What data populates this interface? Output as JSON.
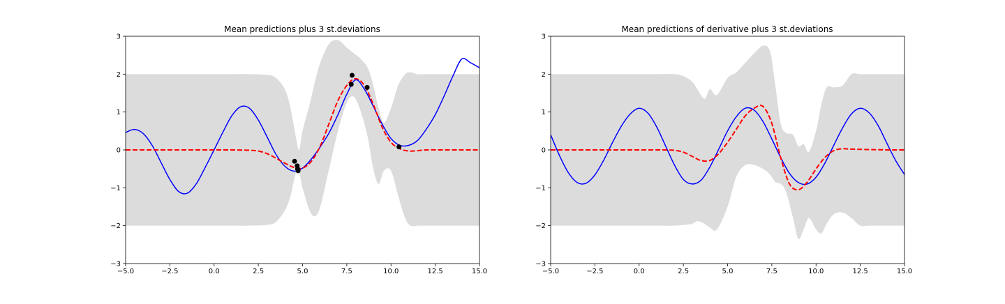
{
  "chart_data": [
    {
      "type": "line",
      "title": "Mean predictions plus 3 st.deviations",
      "xlim": [
        -5,
        15
      ],
      "ylim": [
        -3,
        3
      ],
      "xticks": [
        -5,
        -2.5,
        0,
        2.5,
        5,
        7.5,
        10,
        12.5,
        15
      ],
      "xtick_labels": [
        "−5.0",
        "−2.5",
        "0.0",
        "2.5",
        "5.0",
        "7.5",
        "10.0",
        "12.5",
        "15.0"
      ],
      "yticks": [
        -3,
        -2,
        -1,
        0,
        1,
        2,
        3
      ],
      "ytick_labels": [
        "−3",
        "−2",
        "−1",
        "0",
        "1",
        "2",
        "3"
      ],
      "grid": false,
      "colors": {
        "true": "#0000ff",
        "mean": "#ff0000",
        "band": "#dcdcdc",
        "points": "#000000"
      },
      "series": [
        {
          "style": "solid-blue",
          "x": [
            -5,
            -4.5,
            -4,
            -3.5,
            -3,
            -2.5,
            -2,
            -1.5,
            -1,
            -0.5,
            0,
            0.5,
            1,
            1.5,
            2,
            2.5,
            3,
            3.5,
            4,
            4.5,
            5,
            5.5,
            6,
            6.5,
            7,
            7.5,
            8,
            8.5,
            9,
            9.5,
            10,
            10.5,
            11,
            11.5,
            12,
            12.5,
            13,
            13.5,
            14,
            14.5,
            15
          ],
          "y": [
            0.46,
            0.54,
            0.43,
            0.12,
            -0.33,
            -0.78,
            -1.1,
            -1.14,
            -0.89,
            -0.46,
            0.0,
            0.47,
            0.9,
            1.14,
            1.1,
            0.79,
            0.34,
            -0.12,
            -0.43,
            -0.56,
            -0.48,
            -0.24,
            0.08,
            0.45,
            0.93,
            1.47,
            1.85,
            1.6,
            1.15,
            0.68,
            0.3,
            0.12,
            0.12,
            0.25,
            0.55,
            0.93,
            1.42,
            1.95,
            2.4,
            2.3,
            2.17
          ]
        },
        {
          "style": "dashed-red",
          "x": [
            -5,
            -4,
            -3,
            -2,
            -1,
            0,
            1,
            2,
            2.5,
            3,
            3.5,
            4,
            4.5,
            5,
            5.5,
            6,
            6.5,
            7,
            7.5,
            8,
            8.5,
            9,
            9.5,
            10,
            10.5,
            11,
            11.5,
            12,
            13,
            14,
            15
          ],
          "y": [
            0,
            0,
            0,
            0,
            0,
            0,
            0,
            -0.01,
            -0.03,
            -0.1,
            -0.22,
            -0.35,
            -0.46,
            -0.48,
            -0.3,
            0.1,
            0.7,
            1.3,
            1.7,
            1.88,
            1.7,
            1.2,
            0.6,
            0.2,
            0.03,
            -0.03,
            -0.02,
            0,
            0,
            0,
            0
          ]
        }
      ],
      "band": {
        "x": [
          -5,
          -4,
          -3,
          -2,
          -1,
          0,
          1,
          2,
          3,
          3.5,
          4,
          4.3,
          4.6,
          4.8,
          5,
          5.4,
          5.7,
          6,
          6.5,
          7,
          7.5,
          7.9,
          8.3,
          8.7,
          9,
          9.3,
          9.6,
          10,
          10.4,
          10.8,
          11.1,
          11.5,
          12,
          12.5,
          13,
          14,
          15
        ],
        "upper": [
          2,
          2,
          2,
          2,
          2,
          2,
          2,
          2,
          1.98,
          1.9,
          1.6,
          1.15,
          0.4,
          0.0,
          0.5,
          1.2,
          1.8,
          2.3,
          2.8,
          2.9,
          2.7,
          2.55,
          2.4,
          2.15,
          1.7,
          1.1,
          0.72,
          1.1,
          1.7,
          2.0,
          2.05,
          2.0,
          2.0,
          2.0,
          2.0,
          2.0,
          2.0
        ],
        "lower": [
          -2,
          -2,
          -2,
          -2,
          -2,
          -2,
          -2,
          -2,
          -1.98,
          -1.9,
          -1.6,
          -1.25,
          -0.65,
          -0.6,
          -1.0,
          -1.6,
          -1.75,
          -1.5,
          -0.5,
          0.5,
          1.25,
          1.4,
          1.0,
          0.3,
          -0.5,
          -0.9,
          -0.55,
          -0.55,
          -1.2,
          -1.8,
          -2.0,
          -2.0,
          -2.0,
          -2.0,
          -2.0,
          -2.0,
          -2.0
        ]
      },
      "points": [
        {
          "x": 4.55,
          "y": -0.3
        },
        {
          "x": 4.7,
          "y": -0.42
        },
        {
          "x": 4.72,
          "y": -0.5
        },
        {
          "x": 4.75,
          "y": -0.55
        },
        {
          "x": 7.75,
          "y": 1.73
        },
        {
          "x": 7.8,
          "y": 1.97
        },
        {
          "x": 8.65,
          "y": 1.65
        },
        {
          "x": 10.45,
          "y": 0.08
        }
      ]
    },
    {
      "type": "line",
      "title": "Mean predictions of derivative plus 3 st.deviations",
      "xlim": [
        -5,
        15
      ],
      "ylim": [
        -3,
        3
      ],
      "xticks": [
        -5,
        -2.5,
        0,
        2.5,
        5,
        7.5,
        10,
        12.5,
        15
      ],
      "xtick_labels": [
        "−5.0",
        "−2.5",
        "0.0",
        "2.5",
        "5.0",
        "7.5",
        "10.0",
        "12.5",
        "15.0"
      ],
      "yticks": [
        -3,
        -2,
        -1,
        0,
        1,
        2,
        3
      ],
      "ytick_labels": [
        "−3",
        "−2",
        "−1",
        "0",
        "1",
        "2",
        "3"
      ],
      "grid": false,
      "colors": {
        "true": "#0000ff",
        "mean": "#ff0000",
        "band": "#dcdcdc"
      },
      "series": [
        {
          "style": "solid-blue",
          "x": [
            -5,
            -4.5,
            -4,
            -3.5,
            -3,
            -2.5,
            -2,
            -1.5,
            -1,
            -0.5,
            0,
            0.5,
            1,
            1.5,
            2,
            2.5,
            3,
            3.5,
            4,
            4.5,
            5,
            5.5,
            6,
            6.5,
            7,
            7.5,
            8,
            8.5,
            9,
            9.5,
            10,
            10.5,
            11,
            11.5,
            12,
            12.5,
            13,
            13.5,
            14,
            14.5,
            15
          ],
          "y": [
            0.4,
            -0.15,
            -0.6,
            -0.86,
            -0.88,
            -0.66,
            -0.27,
            0.2,
            0.63,
            0.95,
            1.1,
            0.97,
            0.6,
            0.1,
            -0.4,
            -0.78,
            -0.9,
            -0.8,
            -0.45,
            0.02,
            0.5,
            0.88,
            1.1,
            1.05,
            0.75,
            0.29,
            -0.2,
            -0.62,
            -0.86,
            -0.9,
            -0.72,
            -0.35,
            0.12,
            0.58,
            0.95,
            1.1,
            0.98,
            0.65,
            0.18,
            -0.28,
            -0.65
          ]
        },
        {
          "style": "dashed-red",
          "x": [
            -5,
            -4,
            -3,
            -2,
            -1,
            0,
            1,
            1.5,
            2,
            2.5,
            3,
            3.5,
            4,
            4.5,
            5,
            5.5,
            6,
            6.5,
            7,
            7.5,
            8,
            8.5,
            9,
            9.5,
            10,
            10.5,
            11,
            11.5,
            12,
            13,
            14,
            15
          ],
          "y": [
            0,
            0,
            0,
            0,
            0,
            0,
            0,
            0,
            -0.01,
            -0.06,
            -0.17,
            -0.28,
            -0.28,
            -0.1,
            0.2,
            0.55,
            0.9,
            1.1,
            1.15,
            0.7,
            -0.2,
            -0.9,
            -1.05,
            -0.85,
            -0.5,
            -0.2,
            -0.02,
            0.03,
            0.02,
            0.01,
            0,
            0
          ]
        }
      ],
      "band": {
        "x": [
          -5,
          -4,
          -3,
          -2,
          -1,
          0,
          1,
          2,
          2.5,
          3,
          3.3,
          3.7,
          4,
          4.4,
          5,
          5.5,
          6,
          6.5,
          7,
          7.4,
          7.7,
          8,
          8.3,
          8.7,
          9,
          9.3,
          9.6,
          10,
          10.3,
          10.6,
          11,
          11.5,
          12,
          12.5,
          13,
          14,
          15
        ],
        "upper": [
          2,
          2,
          2,
          2,
          2,
          2,
          2,
          2,
          1.95,
          1.8,
          1.6,
          1.35,
          1.6,
          1.45,
          1.9,
          2.05,
          2.3,
          2.55,
          2.75,
          2.6,
          1.7,
          0.7,
          0.45,
          0.4,
          0.1,
          0.15,
          -0.05,
          0.5,
          1.2,
          1.65,
          1.65,
          1.7,
          2.0,
          2.0,
          2.0,
          2.0,
          2.0
        ],
        "lower": [
          -2,
          -2,
          -2,
          -2,
          -2,
          -2,
          -2,
          -2,
          -1.98,
          -1.95,
          -1.88,
          -1.95,
          -2.05,
          -2.1,
          -1.5,
          -0.7,
          -0.4,
          -0.4,
          -0.5,
          -0.65,
          -0.85,
          -0.9,
          -1.1,
          -1.8,
          -2.35,
          -2.1,
          -1.8,
          -2.1,
          -2.2,
          -1.95,
          -1.7,
          -1.65,
          -1.8,
          -2.0,
          -2.0,
          -2.0,
          -2.0
        ]
      }
    }
  ]
}
